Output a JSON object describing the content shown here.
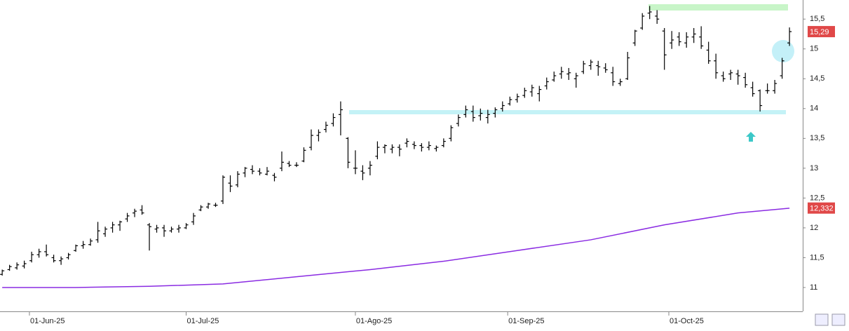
{
  "chart_data": {
    "type": "ohlc",
    "color": "#000000",
    "open": [
      11.22,
      11.3,
      11.33,
      11.36,
      11.45,
      11.55,
      11.6,
      11.5,
      11.45,
      11.5,
      11.62,
      11.7,
      11.72,
      11.8,
      11.9,
      12.0,
      12.05,
      12.15,
      12.25,
      12.3,
      12.05,
      11.98,
      12.0,
      11.95,
      11.98,
      12.0,
      12.1,
      12.3,
      12.35,
      12.38,
      12.45,
      12.75,
      12.72,
      12.92,
      12.98,
      12.95,
      12.9,
      12.88,
      13.0,
      13.08,
      13.05,
      13.12,
      13.35,
      13.55,
      13.65,
      13.75,
      13.9,
      13.5,
      13.0,
      12.95,
      13.0,
      13.2,
      13.35,
      13.32,
      13.35,
      13.42,
      13.4,
      13.38,
      13.35,
      13.33,
      13.38,
      13.5,
      13.75,
      13.9,
      13.95,
      13.88,
      13.85,
      13.92,
      14.0,
      14.08,
      14.15,
      14.22,
      14.28,
      14.25,
      14.38,
      14.48,
      14.58,
      14.58,
      14.5,
      14.62,
      14.72,
      14.72,
      14.68,
      14.6,
      14.42,
      14.5,
      15.1,
      15.35,
      15.6,
      15.55,
      15.3,
      15.1,
      15.2,
      15.1,
      15.2,
      15.2,
      14.98,
      14.8,
      14.55,
      14.58,
      14.58,
      14.52,
      14.35,
      14.3,
      14.3,
      14.3,
      14.55,
      15.1
    ],
    "high": [
      11.3,
      11.38,
      11.42,
      11.45,
      11.6,
      11.65,
      11.72,
      11.55,
      11.52,
      11.58,
      11.72,
      11.78,
      11.82,
      12.1,
      12.02,
      12.1,
      12.12,
      12.25,
      12.32,
      12.38,
      12.08,
      12.05,
      12.05,
      12.02,
      12.05,
      12.08,
      12.25,
      12.38,
      12.42,
      12.42,
      12.88,
      12.88,
      12.95,
      13.02,
      13.05,
      13.0,
      13.02,
      12.92,
      13.28,
      13.12,
      13.1,
      13.35,
      13.65,
      13.65,
      13.78,
      13.92,
      14.12,
      13.52,
      13.3,
      13.05,
      13.12,
      13.45,
      13.4,
      13.4,
      13.4,
      13.5,
      13.45,
      13.42,
      13.45,
      13.38,
      13.5,
      13.72,
      13.9,
      14.05,
      14.05,
      14.0,
      13.98,
      14.02,
      14.12,
      14.2,
      14.25,
      14.35,
      14.4,
      14.38,
      14.52,
      14.62,
      14.7,
      14.68,
      14.6,
      14.8,
      14.82,
      14.8,
      14.76,
      14.7,
      14.5,
      14.95,
      15.32,
      15.6,
      15.72,
      15.65,
      15.35,
      15.3,
      15.28,
      15.28,
      15.35,
      15.38,
      15.12,
      14.92,
      14.62,
      14.65,
      14.65,
      14.6,
      14.45,
      14.32,
      14.42,
      14.48,
      14.85,
      15.36
    ],
    "low": [
      11.2,
      11.28,
      11.3,
      11.32,
      11.42,
      11.5,
      11.52,
      11.42,
      11.38,
      11.47,
      11.6,
      11.65,
      11.7,
      11.75,
      11.85,
      11.92,
      11.95,
      12.1,
      12.18,
      12.22,
      11.62,
      11.92,
      11.85,
      11.92,
      11.92,
      11.98,
      12.05,
      12.28,
      12.32,
      12.35,
      12.4,
      12.6,
      12.68,
      12.85,
      12.9,
      12.88,
      12.88,
      12.78,
      12.95,
      13.02,
      13.02,
      13.1,
      13.3,
      13.45,
      13.6,
      13.7,
      13.55,
      13.0,
      12.9,
      12.8,
      12.88,
      13.15,
      13.25,
      13.25,
      13.2,
      13.35,
      13.32,
      13.28,
      13.3,
      13.28,
      13.35,
      13.45,
      13.7,
      13.85,
      13.78,
      13.8,
      13.75,
      13.85,
      13.95,
      14.05,
      14.1,
      14.18,
      14.2,
      14.12,
      14.32,
      14.45,
      14.5,
      14.48,
      14.35,
      14.58,
      14.65,
      14.55,
      14.6,
      14.38,
      14.38,
      14.48,
      15.05,
      15.32,
      15.5,
      15.42,
      14.65,
      15.0,
      15.05,
      15.02,
      15.1,
      15.0,
      14.75,
      14.5,
      14.45,
      14.48,
      14.4,
      14.35,
      14.2,
      13.95,
      14.25,
      14.25,
      14.5,
      15.05
    ],
    "close": [
      11.28,
      11.35,
      11.38,
      11.4,
      11.55,
      11.6,
      11.55,
      11.45,
      11.48,
      11.55,
      11.7,
      11.72,
      11.78,
      11.95,
      11.98,
      12.05,
      12.1,
      12.2,
      12.28,
      12.25,
      12.02,
      12.0,
      11.95,
      11.98,
      12.0,
      12.05,
      12.2,
      12.35,
      12.4,
      12.38,
      12.85,
      12.7,
      12.9,
      13.0,
      12.95,
      12.92,
      12.95,
      12.85,
      13.1,
      13.05,
      13.05,
      13.3,
      13.55,
      13.6,
      13.72,
      13.85,
      13.98,
      13.1,
      13.0,
      12.92,
      13.05,
      13.35,
      13.38,
      13.35,
      13.32,
      13.45,
      13.38,
      13.35,
      13.38,
      13.35,
      13.45,
      13.68,
      13.85,
      13.98,
      13.85,
      13.92,
      13.9,
      13.98,
      14.05,
      14.15,
      14.2,
      14.3,
      14.35,
      14.32,
      14.45,
      14.55,
      14.62,
      14.6,
      14.55,
      14.75,
      14.78,
      14.7,
      14.65,
      14.45,
      14.45,
      14.85,
      15.3,
      15.55,
      15.62,
      15.5,
      14.9,
      15.15,
      15.12,
      15.2,
      15.25,
      15.05,
      14.8,
      14.6,
      14.5,
      14.6,
      14.55,
      14.4,
      14.25,
      14.05,
      14.3,
      14.42,
      14.8,
      15.29
    ],
    "moving_average": {
      "color": "#8a2be2",
      "x": [
        0,
        10,
        20,
        30,
        40,
        50,
        60,
        70,
        80,
        90,
        100,
        107
      ],
      "values": [
        11.0,
        11.0,
        11.02,
        11.06,
        11.18,
        11.3,
        11.44,
        11.62,
        11.8,
        12.05,
        12.25,
        12.33
      ]
    },
    "xlim": [
      -0.3,
      108.8
    ],
    "xticks": [
      {
        "value": 3.7,
        "label": "01-Jun-25"
      },
      {
        "value": 25,
        "label": "01-Jul-25"
      },
      {
        "value": 48,
        "label": "01-Ago-25"
      },
      {
        "value": 68.7,
        "label": "01-Sep-25"
      },
      {
        "value": 90.6,
        "label": "01-Oct-25"
      }
    ],
    "ylim": [
      10.6,
      15.82
    ],
    "yticks": [
      11,
      {
        "value": 11.5,
        "label": "11,5"
      },
      12,
      {
        "value": 12.5,
        "label": "12,5"
      },
      13,
      {
        "value": 13.5,
        "label": "13,5"
      },
      14,
      {
        "value": 14.5,
        "label": "14,5"
      },
      15,
      {
        "value": 15.5,
        "label": "15,5"
      }
    ],
    "last_labels": [
      {
        "value": 15.29,
        "label": "15,29"
      },
      {
        "value": 12.332,
        "label": "12,332"
      }
    ],
    "label_color": "#e04848"
  }
}
